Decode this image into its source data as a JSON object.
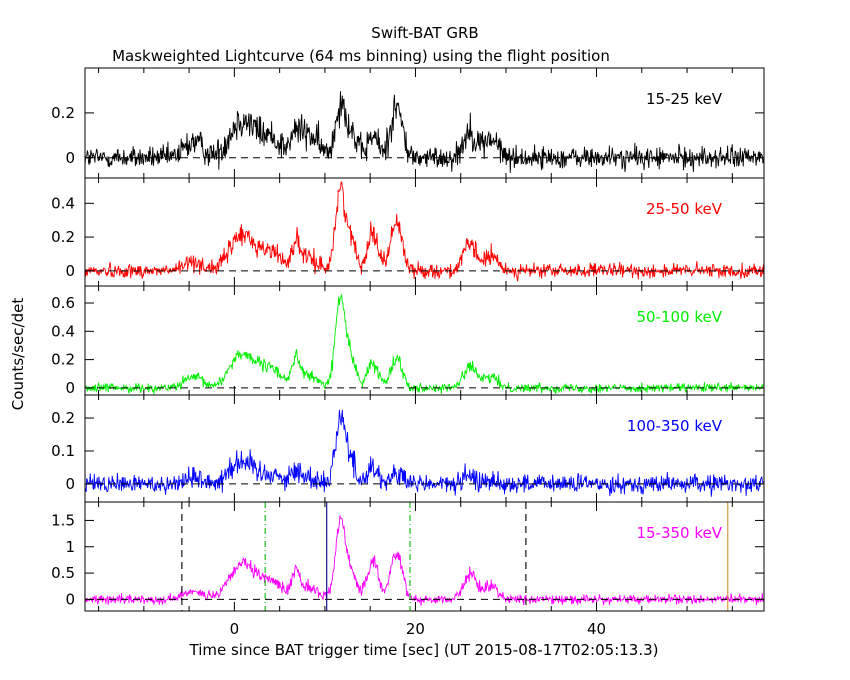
{
  "title": "Swift-BAT GRB",
  "subtitle": "Maskweighted Lightcurve (64 ms binning) using the flight position",
  "ylabel": "Counts/sec/det",
  "xlabel": "Time since BAT trigger time [sec] (UT 2015-08-17T02:05:13.3)",
  "chart_data": {
    "type": "line",
    "xlim": [
      -16.5,
      58.5
    ],
    "x_ticks": [
      0,
      20,
      40
    ],
    "grid": false,
    "binning_sec": 0.064,
    "peaks": [
      {
        "t": -4.5,
        "w": 1.0,
        "rel": 0.12
      },
      {
        "t": 0.5,
        "w": 1.2,
        "rel": 0.36
      },
      {
        "t": 2.5,
        "w": 1.5,
        "rel": 0.22
      },
      {
        "t": 4.5,
        "w": 1.0,
        "rel": 0.14
      },
      {
        "t": 6.8,
        "w": 0.4,
        "rel": 0.3
      },
      {
        "t": 8.0,
        "w": 1.2,
        "rel": 0.16
      },
      {
        "t": 11.7,
        "w": 0.55,
        "rel": 1.0
      },
      {
        "t": 12.9,
        "w": 0.6,
        "rel": 0.35
      },
      {
        "t": 15.3,
        "w": 0.6,
        "rel": 0.5
      },
      {
        "t": 17.9,
        "w": 0.65,
        "rel": 0.62
      },
      {
        "t": 26.0,
        "w": 0.7,
        "rel": 0.33
      },
      {
        "t": 28.3,
        "w": 0.8,
        "rel": 0.18
      }
    ],
    "panels": [
      {
        "label": "15-25 keV",
        "color": "#000000",
        "ylim": [
          -0.09,
          0.4
        ],
        "yticks": [
          0,
          0.2
        ],
        "ytick_labels": [
          "0",
          "0.2"
        ],
        "peak_amp": 0.24,
        "noise": 0.035,
        "rel_override": [
          0.3,
          0.55,
          0.35,
          0.2,
          0.25,
          0.45,
          1.0,
          0.45,
          0.4,
          0.95,
          0.5,
          0.35
        ]
      },
      {
        "label": "25-50 keV",
        "color": "#ff0000",
        "ylim": [
          -0.09,
          0.55
        ],
        "yticks": [
          0,
          0.2,
          0.4
        ],
        "ytick_labels": [
          "0",
          "0.2",
          "0.4"
        ],
        "peak_amp": 0.46,
        "noise": 0.03,
        "rel_override": null
      },
      {
        "label": "50-100 keV",
        "color": "#00ee00",
        "ylim": [
          -0.05,
          0.72
        ],
        "yticks": [
          0,
          0.2,
          0.4,
          0.6
        ],
        "ytick_labels": [
          "0",
          "0.2",
          "0.4",
          "0.6"
        ],
        "peak_amp": 0.62,
        "noise": 0.022,
        "rel_override": [
          0.12,
          0.3,
          0.2,
          0.12,
          0.28,
          0.14,
          1.0,
          0.3,
          0.28,
          0.34,
          0.25,
          0.12
        ]
      },
      {
        "label": "100-350 keV",
        "color": "#0000ff",
        "ylim": [
          -0.055,
          0.27
        ],
        "yticks": [
          0,
          0.1,
          0.2
        ],
        "ytick_labels": [
          "0",
          "0.1",
          "0.2"
        ],
        "peak_amp": 0.2,
        "noise": 0.02,
        "rel_override": [
          0.1,
          0.3,
          0.12,
          0.1,
          0.15,
          0.1,
          1.0,
          0.3,
          0.25,
          0.15,
          0.1,
          0.05
        ]
      },
      {
        "label": "15-350 keV",
        "color": "#ff00ff",
        "ylim": [
          -0.22,
          1.85
        ],
        "yticks": [
          0,
          0.5,
          1,
          1.5
        ],
        "ytick_labels": [
          "0",
          "0.5",
          "1",
          "1.5"
        ],
        "peak_amp": 1.45,
        "noise": 0.06,
        "rel_override": null
      }
    ],
    "vlines": [
      {
        "x": -5.8,
        "color": "#000000",
        "style": "dashed"
      },
      {
        "x": 3.4,
        "color": "#00bb00",
        "style": "dashdot"
      },
      {
        "x": 10.2,
        "color": "#000080",
        "style": "solid"
      },
      {
        "x": 19.4,
        "color": "#00bb00",
        "style": "dashdot"
      },
      {
        "x": 32.2,
        "color": "#000000",
        "style": "dashed"
      },
      {
        "x": 54.5,
        "color": "#d09030",
        "style": "solid"
      }
    ]
  }
}
